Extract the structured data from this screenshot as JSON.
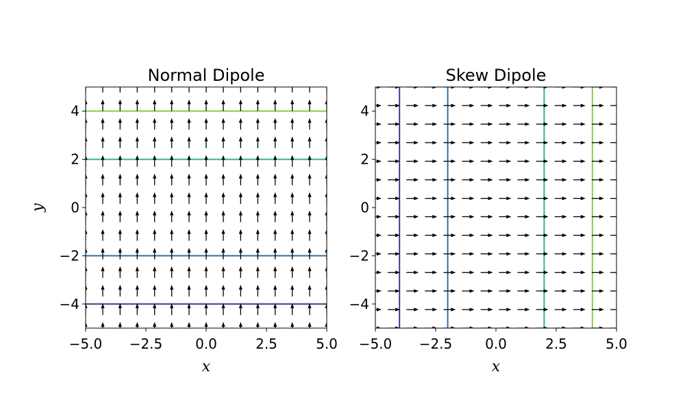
{
  "chart_data": [
    {
      "type": "quiver-contour",
      "title": "Normal Dipole",
      "xlabel": "x",
      "ylabel": "y",
      "xlim": [
        -5,
        5
      ],
      "ylim": [
        -5,
        5
      ],
      "xticks": [
        -5,
        -2.5,
        0,
        2.5,
        5
      ],
      "xtick_labels": [
        "−5.0",
        "−2.5",
        "0.0",
        "2.5",
        "5.0"
      ],
      "yticks": [
        -4,
        -2,
        0,
        2,
        4
      ],
      "ytick_labels": [
        "−4",
        "−2",
        "0",
        "2",
        "4"
      ],
      "grid": false,
      "vector_field": {
        "direction": "+y",
        "x": [
          -5.0,
          -4.29,
          -3.57,
          -2.86,
          -2.14,
          -1.43,
          -0.71,
          0.0,
          0.71,
          1.43,
          2.14,
          2.86,
          3.57,
          4.29,
          5.0
        ],
        "y": [
          -5.0,
          -4.23,
          -3.46,
          -2.69,
          -1.92,
          -1.15,
          -0.38,
          0.38,
          1.15,
          1.92,
          2.69,
          3.46,
          4.23,
          5.0
        ]
      },
      "contours": [
        {
          "orientation": "horizontal",
          "value": -4,
          "color": "#3e3a8a"
        },
        {
          "orientation": "horizontal",
          "value": -2,
          "color": "#2f6fa8"
        },
        {
          "orientation": "horizontal",
          "value": 2,
          "color": "#35b779"
        },
        {
          "orientation": "horizontal",
          "value": 4,
          "color": "#84cf4a"
        }
      ]
    },
    {
      "type": "quiver-contour",
      "title": "Skew Dipole",
      "xlabel": "x",
      "ylabel": "",
      "xlim": [
        -5,
        5
      ],
      "ylim": [
        -5,
        5
      ],
      "xticks": [
        -5,
        -2.5,
        0,
        2.5,
        5
      ],
      "xtick_labels": [
        "−5.0",
        "−2.5",
        "0.0",
        "2.5",
        "5.0"
      ],
      "yticks": [
        -4,
        -2,
        0,
        2,
        4
      ],
      "ytick_labels": [
        "−4",
        "−2",
        "0",
        "2",
        "4"
      ],
      "grid": false,
      "vector_field": {
        "direction": "+x",
        "x": [
          -5.0,
          -4.23,
          -3.46,
          -2.69,
          -1.92,
          -1.15,
          -0.38,
          0.38,
          1.15,
          1.92,
          2.69,
          3.46,
          4.23,
          5.0
        ],
        "y": [
          -5.0,
          -4.23,
          -3.46,
          -2.69,
          -1.92,
          -1.15,
          -0.38,
          0.38,
          1.15,
          1.92,
          2.69,
          3.46,
          4.23,
          5.0
        ]
      },
      "contours": [
        {
          "orientation": "vertical",
          "value": -4,
          "color": "#3e3a8a"
        },
        {
          "orientation": "vertical",
          "value": -2,
          "color": "#2f6fa8"
        },
        {
          "orientation": "vertical",
          "value": 2,
          "color": "#35b779"
        },
        {
          "orientation": "vertical",
          "value": 4,
          "color": "#84cf4a"
        }
      ]
    }
  ]
}
